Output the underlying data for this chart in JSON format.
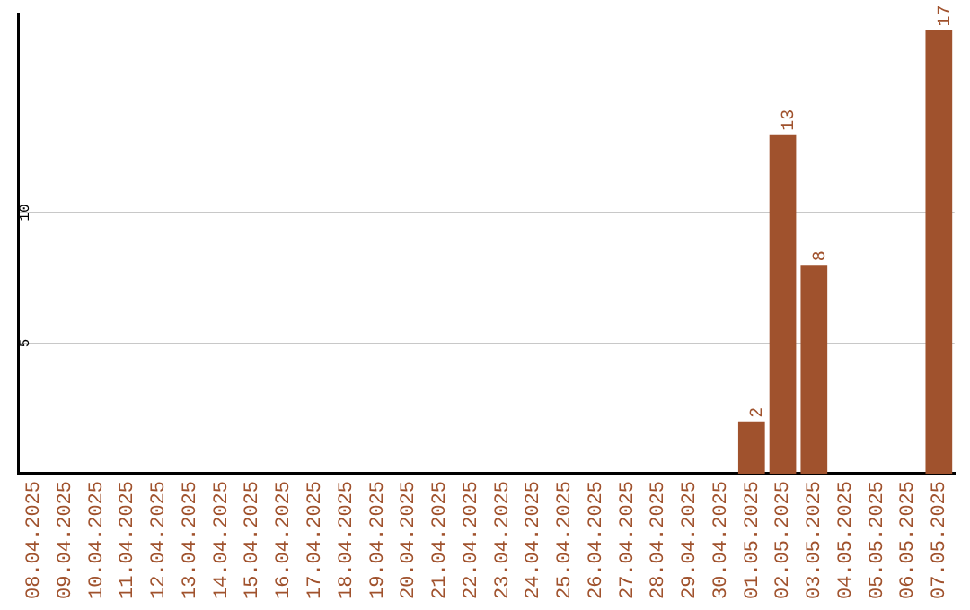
{
  "chart_data": {
    "type": "bar",
    "categories": [
      "08.04.2025",
      "09.04.2025",
      "10.04.2025",
      "11.04.2025",
      "12.04.2025",
      "13.04.2025",
      "14.04.2025",
      "15.04.2025",
      "16.04.2025",
      "17.04.2025",
      "18.04.2025",
      "19.04.2025",
      "20.04.2025",
      "21.04.2025",
      "22.04.2025",
      "23.04.2025",
      "24.04.2025",
      "25.04.2025",
      "26.04.2025",
      "27.04.2025",
      "28.04.2025",
      "29.04.2025",
      "30.04.2025",
      "01.05.2025",
      "02.05.2025",
      "03.05.2025",
      "04.05.2025",
      "05.05.2025",
      "06.05.2025",
      "07.05.2025"
    ],
    "values": [
      0,
      0,
      0,
      0,
      0,
      0,
      0,
      0,
      0,
      0,
      0,
      0,
      0,
      0,
      0,
      0,
      0,
      0,
      0,
      0,
      0,
      0,
      0,
      2,
      13,
      8,
      0,
      0,
      0,
      17
    ],
    "value_labels": [
      null,
      null,
      null,
      null,
      null,
      null,
      null,
      null,
      null,
      null,
      null,
      null,
      null,
      null,
      null,
      null,
      null,
      null,
      null,
      null,
      null,
      null,
      null,
      "2",
      "13",
      "8",
      null,
      null,
      null,
      "17"
    ],
    "color": "#a0522d",
    "ylim": [
      0,
      17.6
    ],
    "yticks": [
      5,
      10
    ],
    "grid": "y",
    "legend": false
  }
}
